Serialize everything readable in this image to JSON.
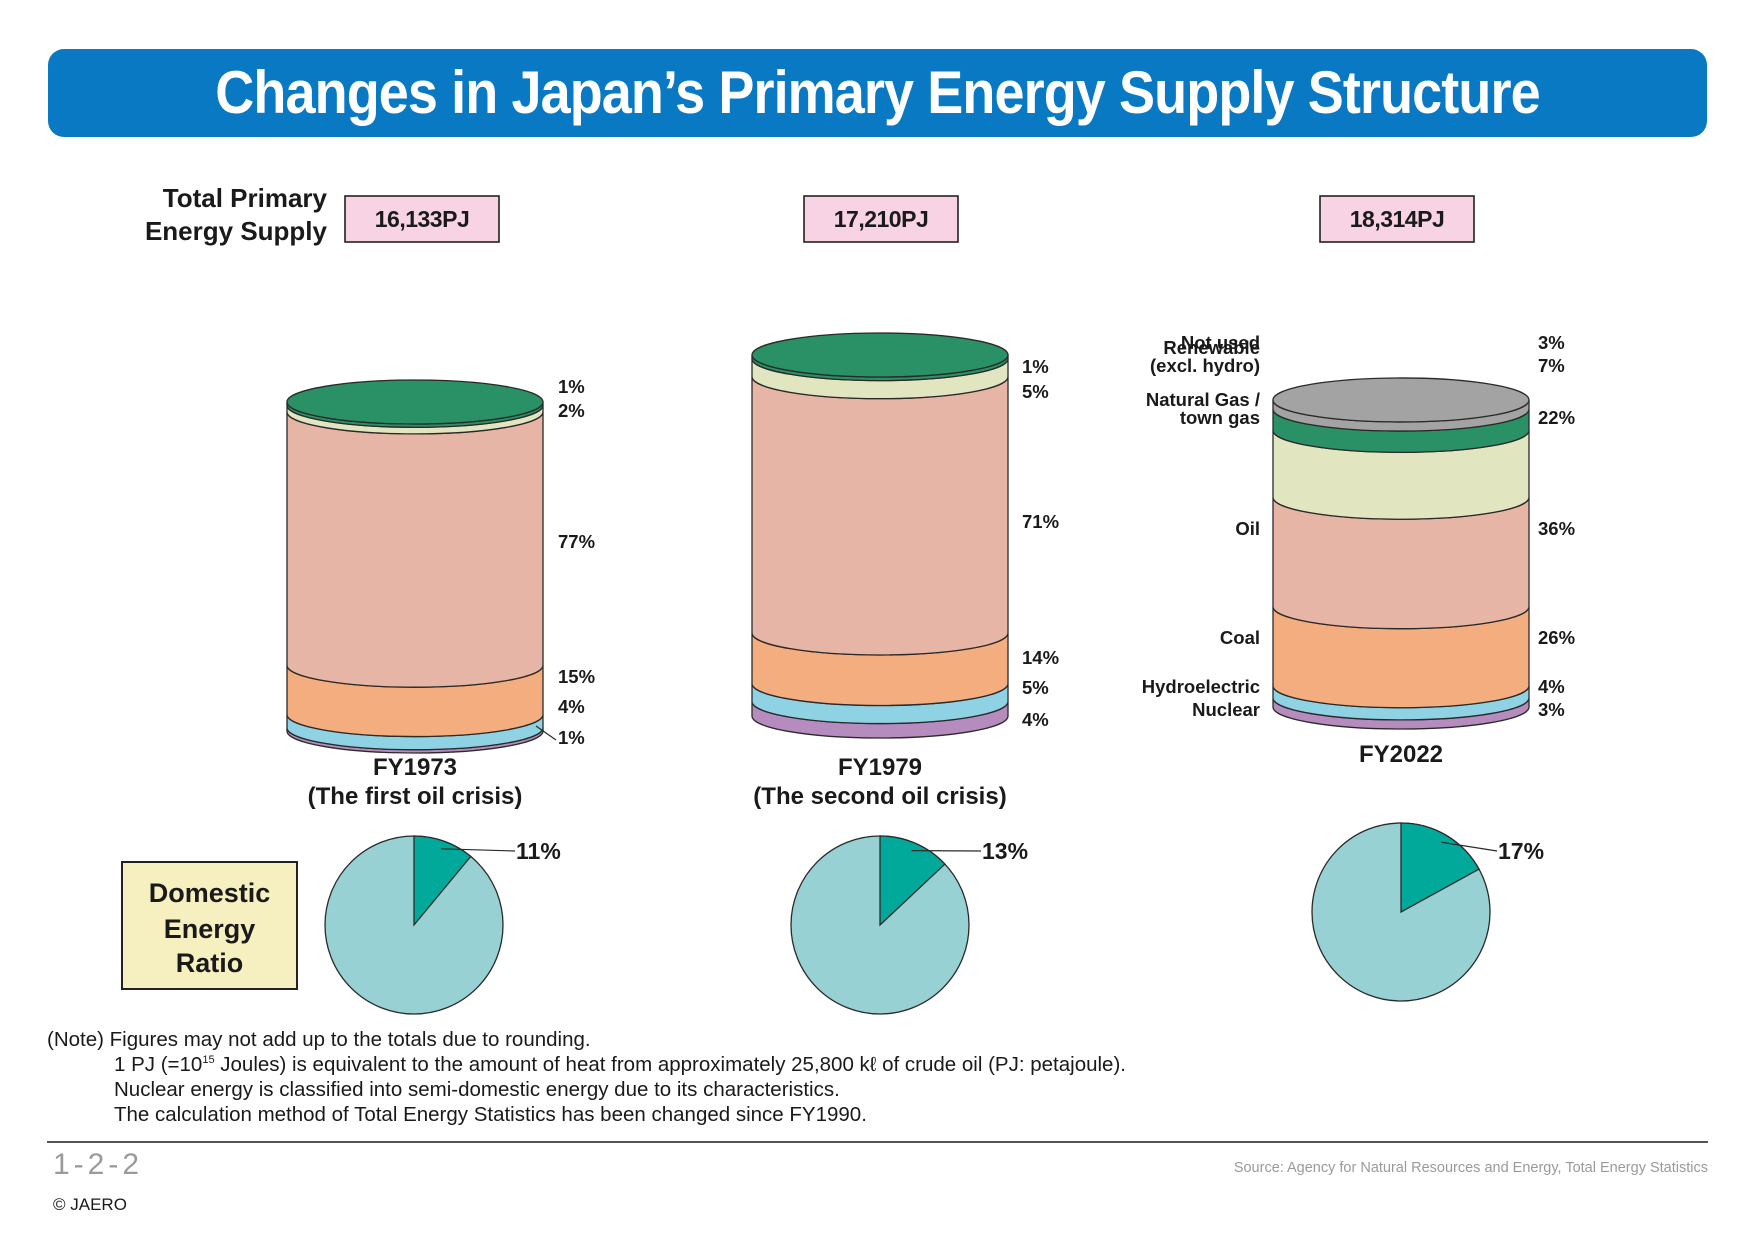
{
  "title": "Changes in Japan’s Primary Energy Supply Structure",
  "total_label_line1": "Total Primary",
  "total_label_line2": "Energy Supply",
  "domestic_label_line1": "Domestic",
  "domestic_label_line2": "Energy",
  "domestic_label_line3": "Ratio",
  "notes": {
    "line1": "(Note) Figures may not add up to the totals due to rounding.",
    "line2_prefix": "1 PJ (=10",
    "line2_sup": "15",
    "line2_suffix": " Joules) is equivalent to the amount of heat from approximately 25,800 kℓ of crude oil (PJ: petajoule).",
    "line3": "Nuclear energy is classified into semi-domestic energy due to its characteristics.",
    "line4": "The calculation method of Total Energy Statistics has been changed since FY1990."
  },
  "figure_code": "1-2-2",
  "copyright": "© JAERO",
  "source": "Source: Agency for Natural Resources and Energy, Total Energy Statistics",
  "colors": {
    "banner": "#0a79c4",
    "total_box": "#f7d3e3",
    "domestic_box": "#f6f0c0",
    "pie_domestic": "#00a99a",
    "pie_other": "#97d1d4",
    "Nuclear": "#b58cbd",
    "Hydroelectric": "#8fd2e3",
    "Coal": "#f4ad7f",
    "Oil": "#e6b5a6",
    "Natural Gas / town gas": "#e1e6c0",
    "Renewable (excl. hydro)": "#2a9166",
    "Not used": "#a3a3a3"
  },
  "chart_data": [
    {
      "type": "stacked-cylinder",
      "category": "FY1973",
      "subtitle": "(The first oil crisis)",
      "total_label": "16,133PJ",
      "segments": [
        {
          "name": "Nuclear",
          "value": 1,
          "label": "1%"
        },
        {
          "name": "Hydroelectric",
          "value": 4,
          "label": "4%"
        },
        {
          "name": "Coal",
          "value": 15,
          "label": "15%"
        },
        {
          "name": "Oil",
          "value": 77,
          "label": "77%"
        },
        {
          "name": "Natural Gas / town gas",
          "value": 2,
          "label": "2%"
        },
        {
          "name": "Renewable (excl. hydro)",
          "value": 1,
          "label": "1%"
        }
      ]
    },
    {
      "type": "stacked-cylinder",
      "category": "FY1979",
      "subtitle": "(The second oil crisis)",
      "total_label": "17,210PJ",
      "segments": [
        {
          "name": "Nuclear",
          "value": 4,
          "label": "4%"
        },
        {
          "name": "Hydroelectric",
          "value": 5,
          "label": "5%"
        },
        {
          "name": "Coal",
          "value": 14,
          "label": "14%"
        },
        {
          "name": "Oil",
          "value": 71,
          "label": "71%"
        },
        {
          "name": "Natural Gas / town gas",
          "value": 5,
          "label": "5%"
        },
        {
          "name": "Renewable (excl. hydro)",
          "value": 1,
          "label": "1%"
        }
      ]
    },
    {
      "type": "stacked-cylinder",
      "category": "FY2022",
      "subtitle": "",
      "total_label": "18,314PJ",
      "segments": [
        {
          "name": "Nuclear",
          "value": 3,
          "label": "3%",
          "display": [
            "Nuclear"
          ]
        },
        {
          "name": "Hydroelectric",
          "value": 4,
          "label": "4%",
          "display": [
            "Hydroelectric"
          ]
        },
        {
          "name": "Coal",
          "value": 26,
          "label": "26%",
          "display": [
            "Coal"
          ]
        },
        {
          "name": "Oil",
          "value": 36,
          "label": "36%",
          "display": [
            "Oil"
          ]
        },
        {
          "name": "Natural Gas / town gas",
          "value": 22,
          "label": "22%",
          "display": [
            "Natural Gas /",
            "town gas"
          ]
        },
        {
          "name": "Renewable (excl. hydro)",
          "value": 7,
          "label": "7%",
          "display": [
            "Renewable",
            "(excl. hydro)"
          ]
        },
        {
          "name": "Not used",
          "value": 3,
          "label": "3%",
          "display": [
            "Not used"
          ]
        }
      ]
    },
    {
      "type": "pie",
      "title": "Domestic Energy Ratio",
      "category": "FY1973",
      "slices": [
        {
          "name": "Domestic",
          "value": 11,
          "label": "11%"
        },
        {
          "name": "Other",
          "value": 89
        }
      ]
    },
    {
      "type": "pie",
      "title": "Domestic Energy Ratio",
      "category": "FY1979",
      "slices": [
        {
          "name": "Domestic",
          "value": 13,
          "label": "13%"
        },
        {
          "name": "Other",
          "value": 87
        }
      ]
    },
    {
      "type": "pie",
      "title": "Domestic Energy Ratio",
      "category": "FY2022",
      "slices": [
        {
          "name": "Domestic",
          "value": 17,
          "label": "17%"
        },
        {
          "name": "Other",
          "value": 83
        }
      ]
    }
  ]
}
